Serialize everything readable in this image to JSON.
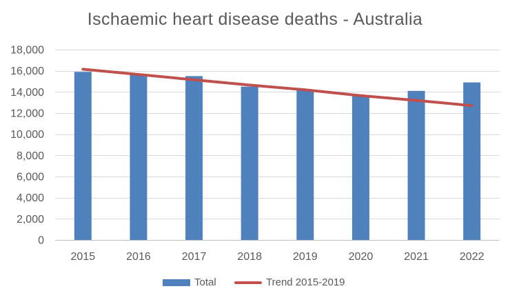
{
  "chart_data": {
    "type": "bar",
    "title": "Ischaemic heart disease deaths - Australia",
    "categories": [
      "2015",
      "2016",
      "2017",
      "2018",
      "2019",
      "2020",
      "2021",
      "2022"
    ],
    "series": [
      {
        "name": "Total",
        "type": "bar",
        "color": "#4f81bd",
        "values": [
          15900,
          15600,
          15500,
          14500,
          14200,
          13600,
          14100,
          14900
        ]
      },
      {
        "name": "Trend 2015-2019",
        "type": "line",
        "color": "#c0504d",
        "values": [
          16150,
          15650,
          15150,
          14650,
          14200,
          13650,
          13200,
          12700
        ]
      }
    ],
    "xlabel": "",
    "ylabel": "",
    "ylim": [
      0,
      18000
    ],
    "yticks": [
      0,
      2000,
      4000,
      6000,
      8000,
      10000,
      12000,
      14000,
      16000,
      18000
    ],
    "ytick_labels": [
      "0",
      "2,000",
      "4,000",
      "6,000",
      "8,000",
      "10,000",
      "12,000",
      "14,000",
      "16,000",
      "18,000"
    ],
    "grid": true,
    "legend_position": "bottom"
  }
}
